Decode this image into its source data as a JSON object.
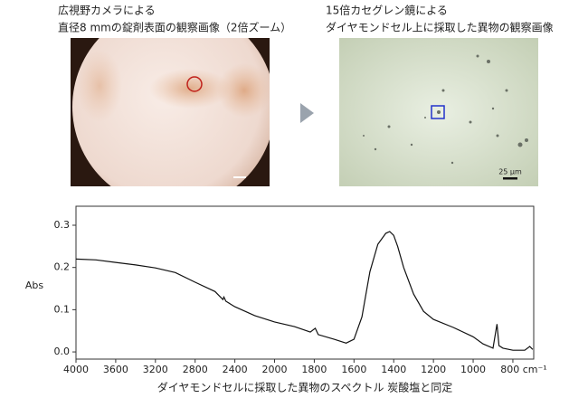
{
  "images": [
    {
      "caption": [
        "広視野カメラによる",
        "直径8 mmの錠剤表面の観察画像（2倍ズーム）"
      ]
    },
    {
      "caption": [
        "15倍カセグレン鏡による",
        "ダイヤモンドセル上に採取した異物の観察画像"
      ],
      "scale_bar": "25 µm"
    }
  ],
  "chart_data": {
    "type": "line",
    "xlabel": "ダイヤモンドセルに採取した異物のスペクトル 炭酸塩と同定",
    "ylabel": "Abs",
    "color": "#111111",
    "x": [
      4000,
      3800,
      3600,
      3400,
      3200,
      3000,
      2800,
      2600,
      2520,
      2510,
      2490,
      2400,
      2200,
      2000,
      1900,
      1820,
      1795,
      1780,
      1700,
      1640,
      1600,
      1560,
      1520,
      1480,
      1440,
      1420,
      1400,
      1380,
      1350,
      1300,
      1250,
      1200,
      1100,
      1000,
      950,
      900,
      880,
      870,
      850,
      800,
      740,
      715,
      700
    ],
    "values": [
      0.22,
      0.218,
      0.212,
      0.206,
      0.199,
      0.188,
      0.165,
      0.143,
      0.124,
      0.13,
      0.12,
      0.107,
      0.086,
      0.071,
      0.06,
      0.047,
      0.056,
      0.041,
      0.03,
      0.021,
      0.03,
      0.083,
      0.19,
      0.255,
      0.281,
      0.285,
      0.276,
      0.25,
      0.2,
      0.137,
      0.096,
      0.077,
      0.058,
      0.036,
      0.019,
      0.009,
      0.066,
      0.015,
      0.009,
      0.004,
      0.004,
      0.013,
      0.006
    ],
    "xlim": [
      4000,
      695
    ],
    "ylim": [
      -0.017,
      0.345
    ],
    "xticks": [
      4000,
      3600,
      3200,
      2800,
      2400,
      2000,
      1800,
      1600,
      1400,
      1200,
      1000,
      {
        "value": 800,
        "label": "800 cm⁻¹"
      }
    ],
    "yticks": [
      {
        "value": 0,
        "label": "0.0"
      },
      0.1,
      0.2,
      0.3
    ]
  }
}
